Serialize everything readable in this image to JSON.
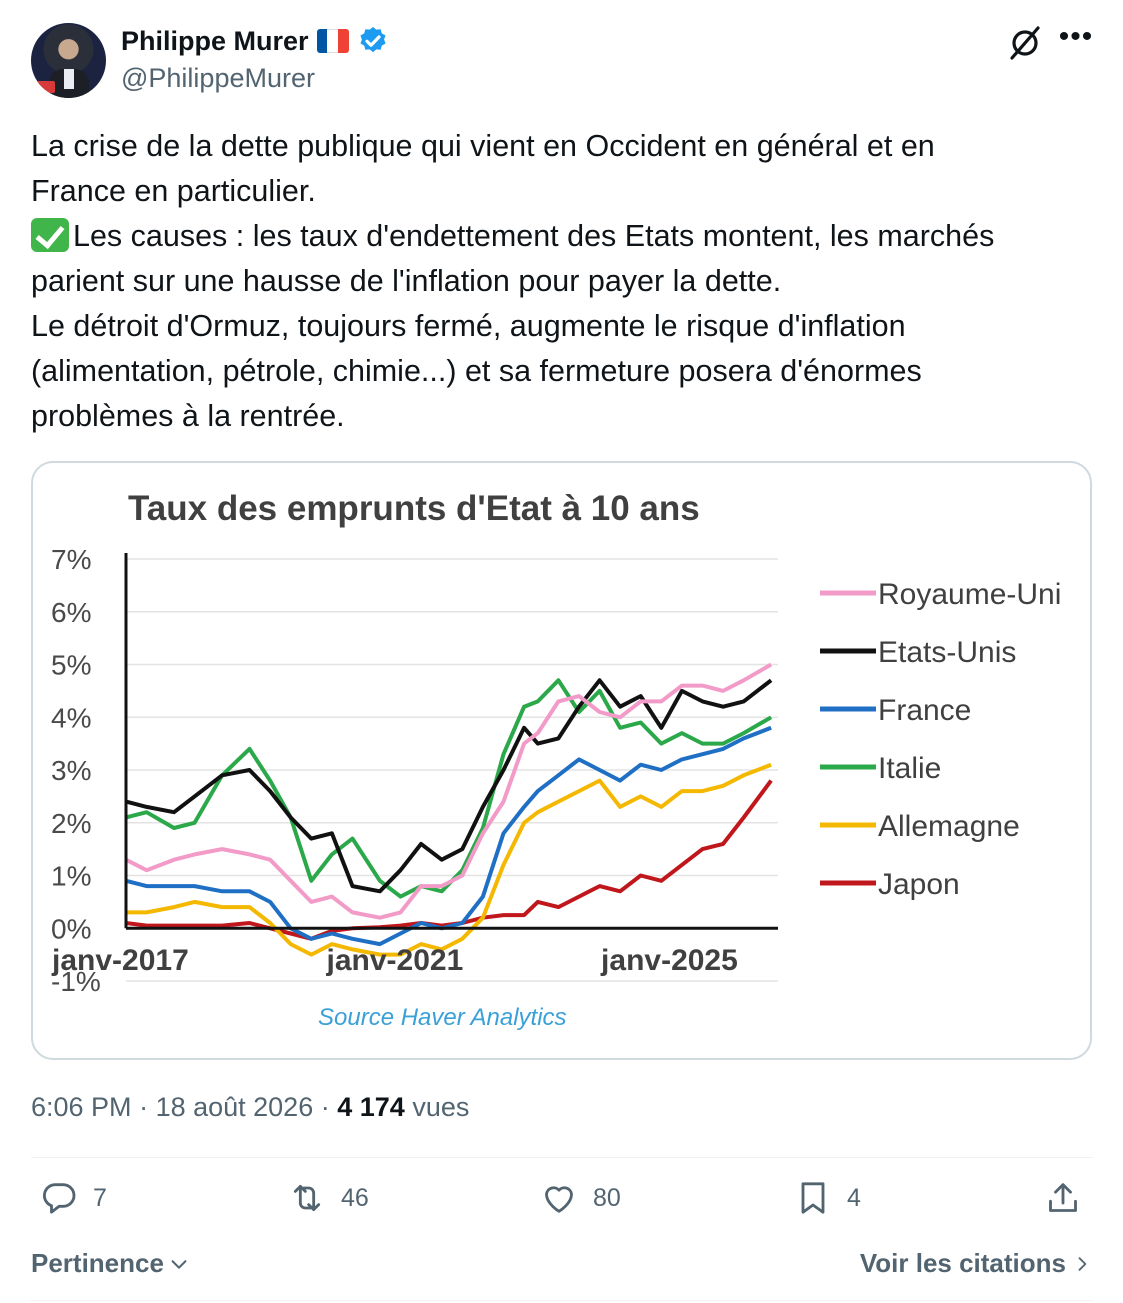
{
  "author": {
    "name": "Philippe Murer",
    "handle": "@PhilippeMurer",
    "flag_colors": [
      "#0055a4",
      "#ffffff",
      "#ef4135"
    ],
    "verified_color": "#1d9bf0"
  },
  "tweet": {
    "lines": [
      "La crise de la dette publique qui vient en Occident en général et en",
      "France en particulier.",
      "Les causes : les taux d'endettement des Etats montent, les marchés",
      "parient sur une hausse de l'inflation pour payer la dette.",
      "Le détroit d'Ormuz, toujours fermé, augmente le risque d'inflation",
      "(alimentation, pétrole, chimie...) et sa fermeture posera d'énormes",
      "problèmes à la rentrée."
    ]
  },
  "chart_data": {
    "type": "line",
    "title": "Taux des emprunts d'Etat à 10 ans",
    "source": "Source Haver Analytics",
    "y_ticks": [
      "7%",
      "6%",
      "5%",
      "4%",
      "3%",
      "2%",
      "1%",
      "0%",
      "-1%"
    ],
    "x_ticks": [
      "janv-2017",
      "janv-2021",
      "janv-2025"
    ],
    "ylim": [
      -1,
      7
    ],
    "xlim": [
      2017,
      2026.5
    ],
    "grid": true,
    "legend_position": "right",
    "series": [
      {
        "name": "Royaume-Uni",
        "color": "#f29bc8",
        "x": [
          2017,
          2017.3,
          2017.7,
          2018,
          2018.4,
          2018.8,
          2019.1,
          2019.4,
          2019.7,
          2020,
          2020.3,
          2020.7,
          2021,
          2021.3,
          2021.6,
          2021.9,
          2022.2,
          2022.5,
          2022.8,
          2023,
          2023.3,
          2023.6,
          2023.9,
          2024.2,
          2024.5,
          2024.8,
          2025.1,
          2025.4,
          2025.7,
          2026,
          2026.4
        ],
        "values": [
          1.3,
          1.1,
          1.3,
          1.4,
          1.5,
          1.4,
          1.3,
          0.9,
          0.5,
          0.6,
          0.3,
          0.2,
          0.3,
          0.8,
          0.8,
          1.0,
          1.8,
          2.4,
          3.5,
          3.7,
          4.3,
          4.4,
          4.1,
          4.0,
          4.3,
          4.3,
          4.6,
          4.6,
          4.5,
          4.7,
          5.0
        ]
      },
      {
        "name": "Etats-Unis",
        "color": "#111111",
        "x": [
          2017,
          2017.3,
          2017.7,
          2018,
          2018.4,
          2018.8,
          2019.1,
          2019.4,
          2019.7,
          2020,
          2020.3,
          2020.7,
          2021,
          2021.3,
          2021.6,
          2021.9,
          2022.2,
          2022.5,
          2022.8,
          2023,
          2023.3,
          2023.6,
          2023.9,
          2024.2,
          2024.5,
          2024.8,
          2025.1,
          2025.4,
          2025.7,
          2026,
          2026.4
        ],
        "values": [
          2.4,
          2.3,
          2.2,
          2.5,
          2.9,
          3.0,
          2.6,
          2.1,
          1.7,
          1.8,
          0.8,
          0.7,
          1.1,
          1.6,
          1.3,
          1.5,
          2.3,
          3.0,
          3.8,
          3.5,
          3.6,
          4.2,
          4.7,
          4.2,
          4.4,
          3.8,
          4.5,
          4.3,
          4.2,
          4.3,
          4.7
        ]
      },
      {
        "name": "France",
        "color": "#1f6fc5",
        "x": [
          2017,
          2017.3,
          2017.7,
          2018,
          2018.4,
          2018.8,
          2019.1,
          2019.4,
          2019.7,
          2020,
          2020.3,
          2020.7,
          2021,
          2021.3,
          2021.6,
          2021.9,
          2022.2,
          2022.5,
          2022.8,
          2023,
          2023.3,
          2023.6,
          2023.9,
          2024.2,
          2024.5,
          2024.8,
          2025.1,
          2025.4,
          2025.7,
          2026,
          2026.4
        ],
        "values": [
          0.9,
          0.8,
          0.8,
          0.8,
          0.7,
          0.7,
          0.5,
          0.0,
          -0.2,
          -0.1,
          -0.2,
          -0.3,
          -0.1,
          0.1,
          0.0,
          0.1,
          0.6,
          1.8,
          2.3,
          2.6,
          2.9,
          3.2,
          3.0,
          2.8,
          3.1,
          3.0,
          3.2,
          3.3,
          3.4,
          3.6,
          3.8
        ]
      },
      {
        "name": "Italie",
        "color": "#2ba84a",
        "x": [
          2017,
          2017.3,
          2017.7,
          2018,
          2018.4,
          2018.8,
          2019.1,
          2019.4,
          2019.7,
          2020,
          2020.3,
          2020.7,
          2021,
          2021.3,
          2021.6,
          2021.9,
          2022.2,
          2022.5,
          2022.8,
          2023,
          2023.3,
          2023.6,
          2023.9,
          2024.2,
          2024.5,
          2024.8,
          2025.1,
          2025.4,
          2025.7,
          2026,
          2026.4
        ],
        "values": [
          2.1,
          2.2,
          1.9,
          2.0,
          2.9,
          3.4,
          2.8,
          2.1,
          0.9,
          1.4,
          1.7,
          0.9,
          0.6,
          0.8,
          0.7,
          1.1,
          1.9,
          3.3,
          4.2,
          4.3,
          4.7,
          4.1,
          4.5,
          3.8,
          3.9,
          3.5,
          3.7,
          3.5,
          3.5,
          3.7,
          4.0
        ]
      },
      {
        "name": "Allemagne",
        "color": "#f5b800",
        "x": [
          2017,
          2017.3,
          2017.7,
          2018,
          2018.4,
          2018.8,
          2019.1,
          2019.4,
          2019.7,
          2020,
          2020.3,
          2020.7,
          2021,
          2021.3,
          2021.6,
          2021.9,
          2022.2,
          2022.5,
          2022.8,
          2023,
          2023.3,
          2023.6,
          2023.9,
          2024.2,
          2024.5,
          2024.8,
          2025.1,
          2025.4,
          2025.7,
          2026,
          2026.4
        ],
        "values": [
          0.3,
          0.3,
          0.4,
          0.5,
          0.4,
          0.4,
          0.1,
          -0.3,
          -0.5,
          -0.3,
          -0.4,
          -0.5,
          -0.5,
          -0.3,
          -0.4,
          -0.2,
          0.2,
          1.2,
          2.0,
          2.2,
          2.4,
          2.6,
          2.8,
          2.3,
          2.5,
          2.3,
          2.6,
          2.6,
          2.7,
          2.9,
          3.1
        ]
      },
      {
        "name": "Japon",
        "color": "#c0171c",
        "x": [
          2017,
          2017.3,
          2017.7,
          2018,
          2018.4,
          2018.8,
          2019.1,
          2019.4,
          2019.7,
          2020,
          2020.3,
          2020.7,
          2021,
          2021.3,
          2021.6,
          2021.9,
          2022.2,
          2022.5,
          2022.8,
          2023,
          2023.3,
          2023.6,
          2023.9,
          2024.2,
          2024.5,
          2024.8,
          2025.1,
          2025.4,
          2025.7,
          2026,
          2026.4
        ],
        "values": [
          0.1,
          0.05,
          0.05,
          0.05,
          0.05,
          0.1,
          0.0,
          -0.1,
          -0.2,
          -0.05,
          0.0,
          0.02,
          0.05,
          0.1,
          0.05,
          0.1,
          0.2,
          0.25,
          0.25,
          0.5,
          0.4,
          0.6,
          0.8,
          0.7,
          1.0,
          0.9,
          1.2,
          1.5,
          1.6,
          2.1,
          2.8
        ]
      }
    ]
  },
  "meta": {
    "time": "6:06 PM",
    "date": "18 août 2026",
    "views_count": "4 174",
    "views_label": "vues"
  },
  "actions": {
    "replies": "7",
    "retweets": "46",
    "likes": "80",
    "bookmarks": "4"
  },
  "footer": {
    "sort_label": "Pertinence",
    "quotes_label": "Voir les citations"
  }
}
